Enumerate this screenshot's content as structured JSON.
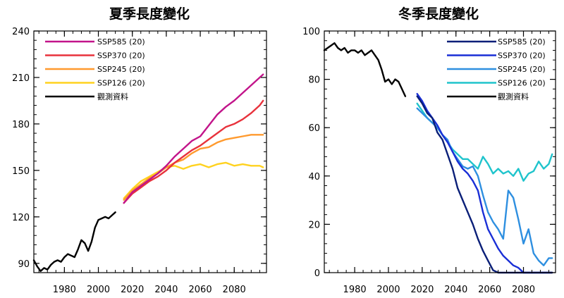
{
  "chart_data": [
    {
      "type": "line",
      "title": "夏季長度變化",
      "xlabel": "",
      "ylabel": "",
      "xlim": [
        1962,
        2099
      ],
      "ylim": [
        84,
        240
      ],
      "xticks": [
        1980,
        2000,
        2020,
        2040,
        2060,
        2080
      ],
      "yticks": [
        90,
        120,
        150,
        180,
        210,
        240
      ],
      "xtick_labels": [
        "1980",
        "2000",
        "2020",
        "2040",
        "2060",
        "2080"
      ],
      "ytick_labels": [
        "90",
        "120",
        "150",
        "180",
        "210",
        "240"
      ],
      "legend": {
        "placement": "top-left",
        "labels": [
          "SSP585 (20)",
          "SSP370 (20)",
          "SSP245 (20)",
          "SSP126 (20)",
          "觀測資料"
        ]
      },
      "series": [
        {
          "name": "SSP585 (20)",
          "color": "#C2148A",
          "x": [
            2015,
            2020,
            2025,
            2030,
            2035,
            2040,
            2045,
            2050,
            2055,
            2060,
            2065,
            2070,
            2075,
            2080,
            2085,
            2090,
            2095,
            2097
          ],
          "values": [
            129,
            136,
            140,
            144,
            148,
            153,
            159,
            164,
            169,
            172,
            179,
            186,
            191,
            195,
            200,
            205,
            210,
            212
          ]
        },
        {
          "name": "SSP370 (20)",
          "color": "#E8323C",
          "x": [
            2015,
            2020,
            2025,
            2030,
            2035,
            2040,
            2045,
            2050,
            2055,
            2060,
            2065,
            2070,
            2075,
            2080,
            2085,
            2090,
            2095,
            2097
          ],
          "values": [
            129,
            135,
            139,
            143,
            146,
            150,
            155,
            159,
            163,
            166,
            170,
            174,
            178,
            180,
            183,
            187,
            192,
            195
          ]
        },
        {
          "name": "SSP245 (20)",
          "color": "#FF9A2E",
          "x": [
            2015,
            2020,
            2025,
            2030,
            2035,
            2040,
            2045,
            2050,
            2055,
            2060,
            2065,
            2070,
            2075,
            2080,
            2085,
            2090,
            2095,
            2097
          ],
          "values": [
            131,
            137,
            141,
            145,
            148,
            152,
            155,
            157,
            161,
            164,
            165,
            168,
            170,
            171,
            172,
            173,
            173,
            173
          ]
        },
        {
          "name": "SSP126 (20)",
          "color": "#FFD21F",
          "x": [
            2015,
            2020,
            2025,
            2030,
            2035,
            2040,
            2045,
            2050,
            2055,
            2060,
            2065,
            2070,
            2075,
            2080,
            2085,
            2090,
            2095,
            2097
          ],
          "values": [
            132,
            138,
            143,
            146,
            149,
            152,
            153,
            151,
            153,
            154,
            152,
            154,
            155,
            153,
            154,
            153,
            153,
            152
          ]
        },
        {
          "name": "觀測資料",
          "color": "#000000",
          "x": [
            1962,
            1964,
            1966,
            1968,
            1970,
            1972,
            1974,
            1976,
            1978,
            1980,
            1982,
            1984,
            1986,
            1988,
            1990,
            1992,
            1994,
            1996,
            1998,
            2000,
            2002,
            2004,
            2006,
            2008,
            2010
          ],
          "values": [
            92,
            88,
            85,
            87,
            86,
            89,
            91,
            92,
            91,
            94,
            96,
            95,
            94,
            99,
            105,
            103,
            98,
            104,
            113,
            118,
            119,
            120,
            119,
            121,
            123
          ]
        }
      ]
    },
    {
      "type": "line",
      "title": "冬季長度變化",
      "xlabel": "",
      "ylabel": "",
      "xlim": [
        1962,
        2099
      ],
      "ylim": [
        0,
        100
      ],
      "xticks": [
        1980,
        2000,
        2020,
        2040,
        2060,
        2080
      ],
      "yticks": [
        0,
        20,
        40,
        60,
        80,
        100
      ],
      "xtick_labels": [
        "1980",
        "2000",
        "2020",
        "2040",
        "2060",
        "2080"
      ],
      "ytick_labels": [
        "0",
        "20",
        "40",
        "60",
        "80",
        "100"
      ],
      "legend": {
        "placement": "top-right",
        "labels": [
          "SSP585 (20)",
          "SSP370 (20)",
          "SSP245 (20)",
          "SSP126 (20)",
          "觀測資料"
        ]
      },
      "series": [
        {
          "name": "SSP585 (20)",
          "color": "#0A1F78",
          "x": [
            2017,
            2020,
            2023,
            2026,
            2029,
            2032,
            2035,
            2038,
            2041,
            2044,
            2047,
            2050,
            2053,
            2056,
            2059,
            2062,
            2065,
            2070,
            2080,
            2090,
            2097
          ],
          "values": [
            73,
            70,
            66,
            64,
            58,
            55,
            49,
            43,
            35,
            30,
            25,
            20,
            14,
            9,
            5,
            1,
            0,
            0,
            0,
            0,
            0
          ]
        },
        {
          "name": "SSP370 (20)",
          "color": "#1A2FD6",
          "x": [
            2017,
            2020,
            2023,
            2026,
            2029,
            2032,
            2035,
            2038,
            2041,
            2044,
            2047,
            2050,
            2053,
            2056,
            2059,
            2062,
            2065,
            2068,
            2071,
            2074,
            2077,
            2080,
            2085,
            2090,
            2097
          ],
          "values": [
            74,
            71,
            67,
            64,
            61,
            57,
            54,
            50,
            46,
            43,
            41,
            38,
            34,
            25,
            18,
            14,
            10,
            7,
            5,
            3,
            2,
            0,
            0,
            0,
            0
          ]
        },
        {
          "name": "SSP245 (20)",
          "color": "#2E8FE0",
          "x": [
            2017,
            2020,
            2023,
            2026,
            2029,
            2032,
            2035,
            2038,
            2041,
            2044,
            2047,
            2050,
            2053,
            2056,
            2059,
            2062,
            2065,
            2068,
            2071,
            2074,
            2077,
            2080,
            2083,
            2086,
            2089,
            2092,
            2095,
            2097
          ],
          "values": [
            68,
            66,
            64,
            62,
            60,
            57,
            55,
            50,
            47,
            44,
            43,
            44,
            40,
            32,
            25,
            21,
            18,
            14,
            34,
            31,
            22,
            12,
            18,
            8,
            5,
            3,
            6,
            6
          ]
        },
        {
          "name": "SSP126 (20)",
          "color": "#1FC4CC",
          "x": [
            2017,
            2020,
            2023,
            2026,
            2029,
            2032,
            2035,
            2038,
            2041,
            2044,
            2047,
            2050,
            2053,
            2056,
            2059,
            2062,
            2065,
            2068,
            2071,
            2074,
            2077,
            2080,
            2083,
            2086,
            2089,
            2092,
            2095,
            2097
          ],
          "values": [
            70,
            67,
            64,
            62,
            60,
            57,
            54,
            51,
            49,
            47,
            47,
            45,
            43,
            48,
            45,
            41,
            43,
            41,
            42,
            40,
            43,
            38,
            41,
            42,
            46,
            43,
            45,
            49
          ]
        },
        {
          "name": "觀測資料",
          "color": "#000000",
          "x": [
            1962,
            1964,
            1966,
            1968,
            1970,
            1972,
            1974,
            1976,
            1978,
            1980,
            1982,
            1984,
            1986,
            1988,
            1990,
            1992,
            1994,
            1996,
            1998,
            2000,
            2002,
            2004,
            2006,
            2008,
            2010
          ],
          "values": [
            92,
            93,
            94,
            95,
            93,
            92,
            93,
            91,
            92,
            92,
            91,
            92,
            90,
            91,
            92,
            90,
            88,
            84,
            79,
            80,
            78,
            80,
            79,
            76,
            73
          ]
        }
      ]
    }
  ]
}
